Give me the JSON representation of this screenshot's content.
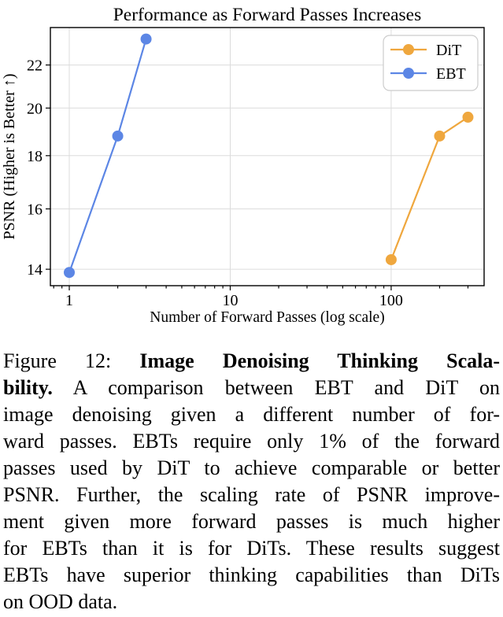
{
  "chart_data": {
    "type": "line",
    "title": "Performance as Forward Passes Increases",
    "xlabel": "Number of Forward Passes (log scale)",
    "ylabel": "PSNR (Higher is Better ↑)",
    "xscale": "log",
    "yscale": "log",
    "xlim": [
      0.763,
      378
    ],
    "ylim": [
      13.5,
      23.9
    ],
    "x_ticks": [
      {
        "value": 1,
        "label": "1"
      },
      {
        "value": 10,
        "label": "10"
      },
      {
        "value": 100,
        "label": "100"
      }
    ],
    "x_minor_ticks": [
      0.8,
      0.9,
      2,
      3,
      4,
      5,
      6,
      7,
      8,
      9,
      20,
      30,
      40,
      50,
      60,
      70,
      80,
      90,
      200,
      300
    ],
    "y_ticks": [
      {
        "value": 14,
        "label": "14"
      },
      {
        "value": 16,
        "label": "16"
      },
      {
        "value": 18,
        "label": "18"
      },
      {
        "value": 20,
        "label": "20"
      },
      {
        "value": 22,
        "label": "22"
      }
    ],
    "grid": true,
    "grid_color": "#dcdcdc",
    "spine_color": "#000000",
    "legend": {
      "position": "upper right"
    },
    "series": [
      {
        "name": "DiT",
        "color": "#EFA73E",
        "x": [
          100,
          200,
          300
        ],
        "y": [
          14.3,
          18.8,
          19.6
        ]
      },
      {
        "name": "EBT",
        "color": "#5C86E5",
        "x": [
          1,
          2,
          3
        ],
        "y": [
          13.9,
          18.8,
          23.3
        ]
      }
    ]
  },
  "caption": {
    "lines": [
      {
        "normal": "Figure 12:",
        "bold": "Image Denoising Thinking Scala-"
      },
      {
        "bold": "bility.",
        "normal": "A comparison between EBT and DiT on"
      },
      {
        "normal": "image denoising given a different number of for-"
      },
      {
        "normal": "ward passes. EBTs require only 1% of the forward"
      },
      {
        "normal": "passes used by DiT to achieve comparable or better"
      },
      {
        "normal": "PSNR. Further, the scaling rate of PSNR improve-"
      },
      {
        "normal": "ment given more forward passes is much higher"
      },
      {
        "normal": "for EBTs than it is for DiTs. These results suggest"
      },
      {
        "normal": "EBTs have superior thinking capabilities than DiTs"
      },
      {
        "normal": "on OOD data."
      }
    ]
  }
}
